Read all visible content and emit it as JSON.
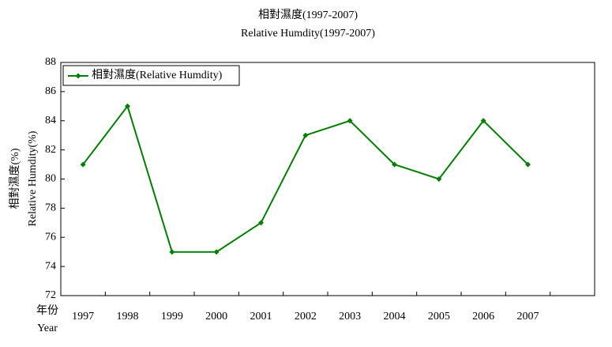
{
  "chart_data": {
    "type": "line",
    "title": "相對濕度(1997-2007)",
    "subtitle": "Relative Humdity(1997-2007)",
    "y_label": "相對濕度(%)",
    "y_label_en": "Relative Humdity(%)",
    "x_label": "年份",
    "x_label_en": "Year",
    "categories": [
      "1997",
      "1998",
      "1999",
      "2000",
      "2001",
      "2002",
      "2003",
      "2004",
      "2005",
      "2006",
      "2007"
    ],
    "series": [
      {
        "name": "相對濕度(Relative Humdity)",
        "color": "#008000",
        "values": [
          81,
          85,
          75,
          75,
          77,
          83,
          84,
          81,
          80,
          84,
          81
        ]
      }
    ],
    "ylim": [
      72,
      88
    ],
    "yticks": [
      72,
      74,
      76,
      78,
      80,
      82,
      84,
      86,
      88
    ],
    "grid": false,
    "legend": "top-left"
  }
}
